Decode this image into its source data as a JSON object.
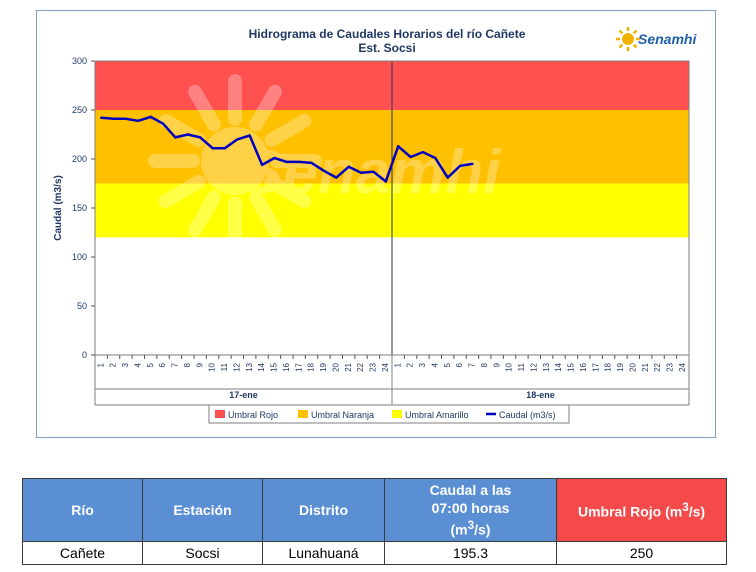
{
  "chart_data": {
    "type": "line",
    "title": "Hidrograma de Caudales Horarios del río Cañete",
    "subtitle": "Est. Socsi",
    "ylabel": "Caudal (m3/s)",
    "ylim": [
      0,
      300
    ],
    "yticks": [
      "0",
      "50",
      "100",
      "150",
      "200",
      "250",
      "300"
    ],
    "x_ticks_per_day": [
      "1",
      "2",
      "3",
      "4",
      "5",
      "6",
      "7",
      "8",
      "9",
      "10",
      "11",
      "12",
      "13",
      "14",
      "15",
      "16",
      "17",
      "18",
      "19",
      "20",
      "21",
      "22",
      "23",
      "24"
    ],
    "days": [
      "17-ene",
      "18-ene"
    ],
    "thresholds": [
      {
        "name": "Umbral Rojo",
        "from": 250,
        "to": 300,
        "color": "#ff5050"
      },
      {
        "name": "Umbral Naranja",
        "from": 175,
        "to": 250,
        "color": "#ffc000"
      },
      {
        "name": "Umbral Amarillo",
        "from": 120,
        "to": 175,
        "color": "#ffff00"
      }
    ],
    "series": [
      {
        "name": "Caudal (m3/s)",
        "color": "#0000c0",
        "x": [
          1,
          2,
          3,
          4,
          5,
          6,
          7,
          8,
          9,
          10,
          11,
          12,
          13,
          14,
          15,
          16,
          17,
          18,
          19,
          20,
          21,
          22,
          23,
          24,
          25,
          26,
          27,
          28,
          29,
          30,
          31
        ],
        "values": [
          242,
          241,
          241,
          239,
          243,
          236,
          222,
          225,
          222,
          211,
          211,
          220,
          224,
          194,
          201,
          197,
          197,
          196,
          188,
          181,
          192,
          186,
          187,
          177,
          213,
          202,
          207,
          201,
          181,
          193,
          195
        ]
      }
    ],
    "legend": [
      "Umbral Rojo",
      "Umbral Naranja",
      "Umbral Amarillo",
      "Caudal (m3/s)"
    ],
    "legend_position": "bottom",
    "watermark": "Senamhi",
    "logo": "Senamhi"
  },
  "table": {
    "headers": [
      "Río",
      "Estación",
      "Distrito",
      "Caudal a las 07:00 horas (m3/s)",
      "Umbral Rojo (m3/s)"
    ],
    "header_caudal_lines": [
      "Caudal a las",
      "07:00 horas",
      "(m",
      "3",
      "/s)"
    ],
    "header_umbral_parts": [
      "Umbral Rojo (m",
      "3",
      "/s)"
    ],
    "row": [
      "Cañete",
      "Socsi",
      "Lunahuaná",
      "195.3",
      "250"
    ]
  }
}
